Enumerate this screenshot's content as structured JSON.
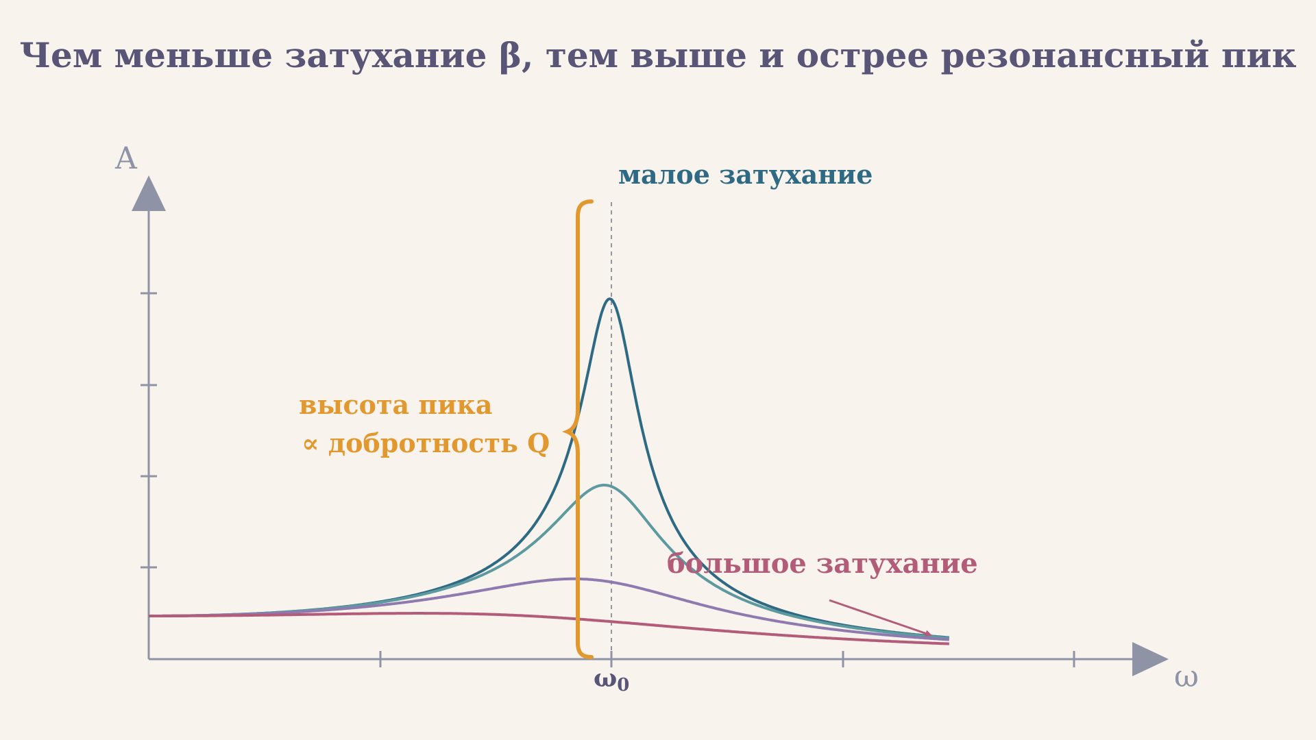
{
  "title": "Чем меньше затухание β, тем выше и острее резонансный пик",
  "axes": {
    "y_label": "A",
    "x_label": "ω",
    "resonance_tick_label": "ω",
    "resonance_tick_subscript": "0"
  },
  "annotations": {
    "small_damping": "малое затухание",
    "large_damping": "большое затухание",
    "peak_height_line1": "высота пика",
    "peak_height_line2": "∝ добротность Q"
  },
  "colors": {
    "background": "#f9f3ed",
    "title": "#595577",
    "axis": "#8f93a6",
    "small_damping": "#2e6a83",
    "medium_damping": "#5c9aa0",
    "medium_large_damping": "#8f7ab0",
    "large_damping": "#b25c79",
    "brace": "#e1982f"
  },
  "chart_data": {
    "type": "line",
    "x_unit": "ω/ω0",
    "xlim": [
      0,
      2.4
    ],
    "ylim": [
      0,
      1
    ],
    "series": [
      {
        "gamma": 0.12,
        "color": "#2e6a83"
      },
      {
        "gamma": 0.25,
        "color": "#5c9aa0"
      },
      {
        "gamma": 0.56,
        "color": "#8f7ab0"
      },
      {
        "gamma": 1.15,
        "color": "#b25c79"
      }
    ]
  }
}
